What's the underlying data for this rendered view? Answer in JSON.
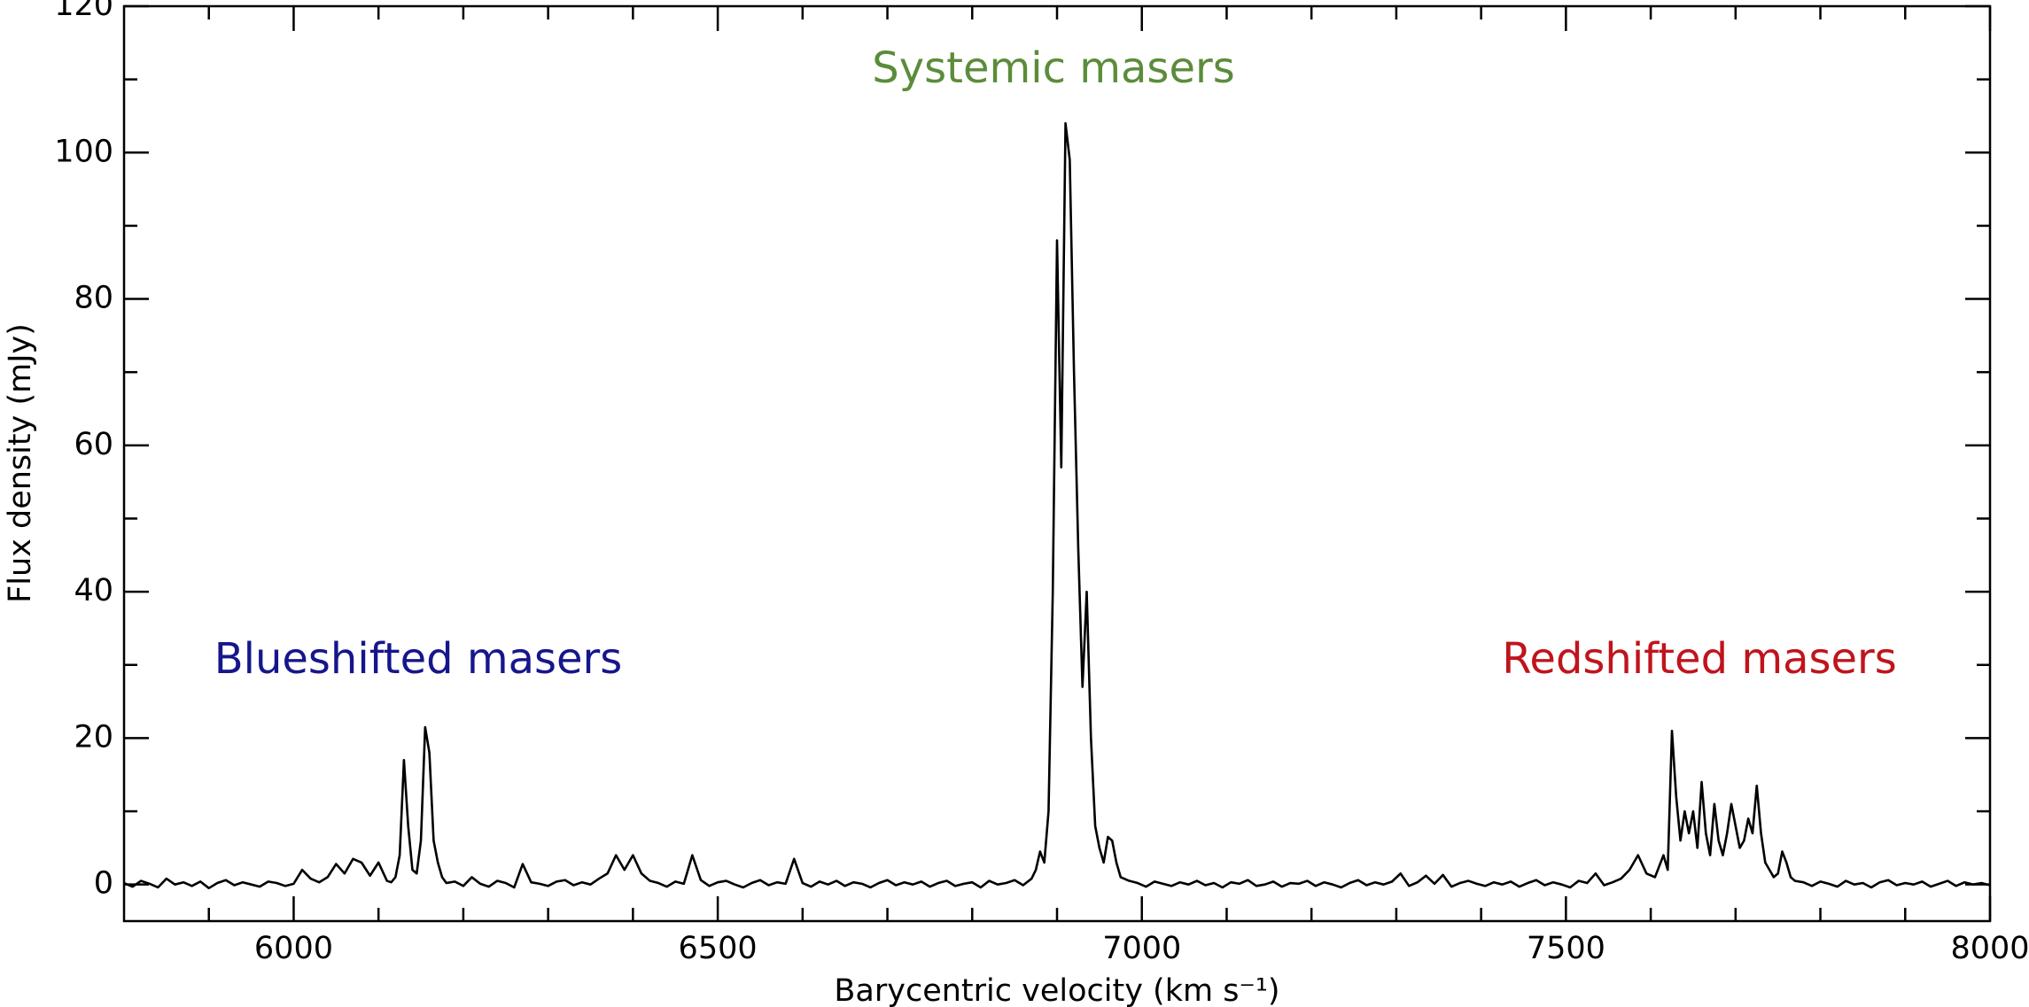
{
  "chart_data": {
    "type": "line",
    "xlabel": "Barycentric velocity (km s⁻¹)",
    "ylabel": "Flux density (mJy)",
    "xlim": [
      5800,
      8000
    ],
    "ylim": [
      -5,
      120
    ],
    "xticks": [
      6000,
      6500,
      7000,
      7500,
      8000
    ],
    "yticks": [
      0,
      20,
      40,
      60,
      80,
      100,
      120
    ],
    "xminorticks": [
      5900,
      6100,
      6200,
      6300,
      6400,
      6600,
      6700,
      6800,
      6900,
      7100,
      7200,
      7300,
      7400,
      7600,
      7700,
      7800,
      7900
    ],
    "yminorticks": [
      10,
      30,
      50,
      70,
      90,
      110
    ],
    "color": "#000000",
    "annotations": [
      {
        "text": "Systemic masers",
        "color": "#5b8c3a"
      },
      {
        "text": "Blueshifted masers",
        "color": "#16168c"
      },
      {
        "text": "Redshifted masers",
        "color": "#c0141c"
      }
    ],
    "x": [
      5800,
      5810,
      5820,
      5830,
      5840,
      5850,
      5860,
      5870,
      5880,
      5890,
      5900,
      5910,
      5920,
      5930,
      5940,
      5950,
      5960,
      5970,
      5980,
      5990,
      6000,
      6010,
      6020,
      6030,
      6040,
      6050,
      6060,
      6070,
      6080,
      6090,
      6100,
      6110,
      6115,
      6120,
      6125,
      6130,
      6135,
      6140,
      6145,
      6150,
      6155,
      6160,
      6165,
      6170,
      6175,
      6180,
      6190,
      6200,
      6210,
      6220,
      6230,
      6240,
      6250,
      6260,
      6270,
      6280,
      6290,
      6300,
      6310,
      6320,
      6330,
      6340,
      6350,
      6360,
      6370,
      6380,
      6390,
      6400,
      6410,
      6420,
      6430,
      6440,
      6450,
      6460,
      6470,
      6480,
      6490,
      6500,
      6510,
      6520,
      6530,
      6540,
      6550,
      6560,
      6570,
      6580,
      6590,
      6600,
      6610,
      6620,
      6630,
      6640,
      6650,
      6660,
      6670,
      6680,
      6690,
      6700,
      6710,
      6720,
      6730,
      6740,
      6750,
      6760,
      6770,
      6780,
      6790,
      6800,
      6810,
      6820,
      6830,
      6840,
      6850,
      6860,
      6870,
      6875,
      6880,
      6885,
      6890,
      6895,
      6900,
      6905,
      6910,
      6915,
      6920,
      6925,
      6930,
      6935,
      6940,
      6945,
      6950,
      6955,
      6960,
      6965,
      6970,
      6975,
      6985,
      6995,
      7005,
      7015,
      7025,
      7035,
      7045,
      7055,
      7065,
      7075,
      7085,
      7095,
      7105,
      7115,
      7125,
      7135,
      7145,
      7155,
      7165,
      7175,
      7185,
      7195,
      7205,
      7215,
      7225,
      7235,
      7245,
      7255,
      7265,
      7275,
      7285,
      7295,
      7305,
      7315,
      7325,
      7335,
      7345,
      7355,
      7365,
      7375,
      7385,
      7395,
      7405,
      7415,
      7425,
      7435,
      7445,
      7455,
      7465,
      7475,
      7485,
      7495,
      7505,
      7515,
      7525,
      7535,
      7545,
      7555,
      7565,
      7575,
      7585,
      7595,
      7605,
      7615,
      7620,
      7625,
      7630,
      7635,
      7640,
      7645,
      7650,
      7655,
      7660,
      7665,
      7670,
      7675,
      7680,
      7685,
      7690,
      7695,
      7700,
      7705,
      7710,
      7715,
      7720,
      7725,
      7730,
      7735,
      7740,
      7745,
      7750,
      7755,
      7760,
      7765,
      7770,
      7780,
      7790,
      7800,
      7810,
      7820,
      7830,
      7840,
      7850,
      7860,
      7870,
      7880,
      7890,
      7900,
      7910,
      7920,
      7930,
      7940,
      7950,
      7960,
      7970,
      7980,
      7990,
      8000
    ],
    "values": [
      0.2,
      -0.3,
      0.5,
      0.1,
      -0.4,
      0.8,
      0.0,
      0.3,
      -0.2,
      0.4,
      -0.5,
      0.2,
      0.6,
      -0.1,
      0.3,
      0.0,
      -0.3,
      0.4,
      0.2,
      -0.2,
      0.1,
      2.0,
      0.8,
      0.3,
      1.0,
      2.8,
      1.5,
      3.5,
      3.0,
      1.2,
      3.0,
      0.5,
      0.3,
      1.0,
      4.0,
      17.0,
      8.0,
      2.0,
      1.5,
      6.0,
      21.5,
      18.0,
      6.0,
      3.0,
      1.0,
      0.2,
      0.4,
      -0.2,
      1.0,
      0.1,
      -0.3,
      0.5,
      0.2,
      -0.4,
      2.8,
      0.3,
      0.1,
      -0.2,
      0.4,
      0.6,
      -0.1,
      0.3,
      0.0,
      0.8,
      1.5,
      4.0,
      2.0,
      4.0,
      1.5,
      0.5,
      0.2,
      -0.3,
      0.4,
      0.1,
      4.0,
      0.6,
      -0.2,
      0.3,
      0.5,
      0.0,
      -0.4,
      0.2,
      0.6,
      -0.1,
      0.3,
      0.1,
      3.5,
      0.2,
      -0.3,
      0.4,
      0.0,
      0.5,
      -0.2,
      0.3,
      0.1,
      -0.4,
      0.2,
      0.6,
      -0.1,
      0.3,
      0.0,
      0.4,
      -0.3,
      0.2,
      0.5,
      -0.2,
      0.1,
      0.3,
      -0.4,
      0.5,
      0.0,
      0.2,
      0.6,
      -0.1,
      0.8,
      2.0,
      4.5,
      3.0,
      10.0,
      40.0,
      88.0,
      57.0,
      104.0,
      99.0,
      70.0,
      46.0,
      27.0,
      40.0,
      20.0,
      8.0,
      5.0,
      3.0,
      6.5,
      6.0,
      3.0,
      1.0,
      0.5,
      0.2,
      -0.3,
      0.4,
      0.1,
      -0.2,
      0.3,
      0.0,
      0.5,
      -0.1,
      0.2,
      -0.4,
      0.3,
      0.1,
      0.6,
      -0.2,
      0.0,
      0.4,
      -0.3,
      0.2,
      0.1,
      0.5,
      -0.2,
      0.3,
      0.0,
      -0.4,
      0.2,
      0.6,
      -0.1,
      0.3,
      0.0,
      0.4,
      1.5,
      -0.2,
      0.3,
      1.2,
      0.1,
      1.3,
      -0.3,
      0.2,
      0.5,
      0.1,
      -0.2,
      0.3,
      0.0,
      0.4,
      -0.3,
      0.2,
      0.6,
      -0.1,
      0.3,
      0.0,
      -0.4,
      0.5,
      0.2,
      1.5,
      -0.1,
      0.3,
      0.8,
      2.0,
      4.0,
      1.5,
      1.0,
      4.0,
      2.0,
      21.0,
      12.0,
      6.0,
      10.0,
      7.0,
      10.0,
      5.0,
      14.0,
      7.0,
      4.0,
      11.0,
      6.0,
      4.0,
      7.0,
      11.0,
      8.0,
      5.0,
      6.0,
      9.0,
      7.0,
      13.5,
      7.0,
      3.0,
      2.0,
      1.0,
      1.5,
      4.5,
      3.0,
      1.0,
      0.5,
      0.3,
      -0.2,
      0.4,
      0.1,
      -0.3,
      0.5,
      0.0,
      0.2,
      -0.4,
      0.3,
      0.6,
      -0.1,
      0.2,
      0.0,
      0.4,
      -0.3,
      0.1,
      0.5,
      -0.2,
      0.3,
      0.0,
      0.2,
      -0.1
    ]
  }
}
